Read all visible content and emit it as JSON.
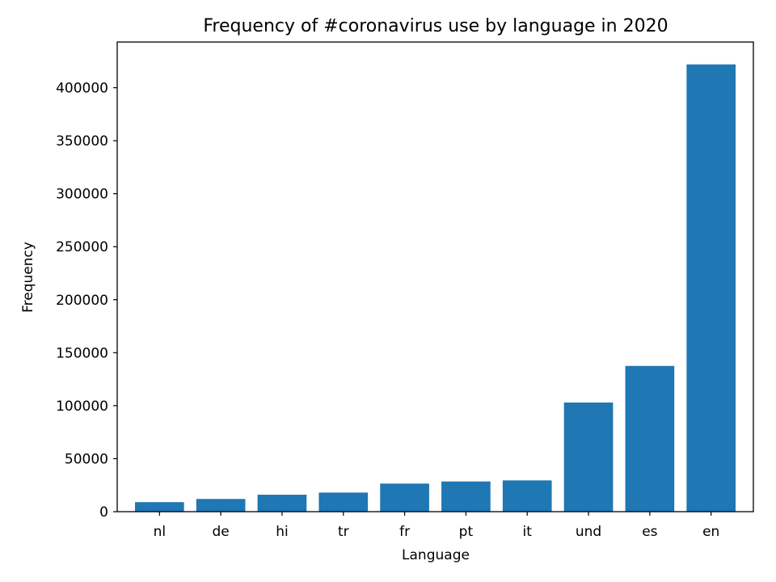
{
  "chart_data": {
    "type": "bar",
    "title": "Frequency of #coronavirus use by language in 2020",
    "xlabel": "Language",
    "ylabel": "Frequency",
    "categories": [
      "nl",
      "de",
      "hi",
      "tr",
      "fr",
      "pt",
      "it",
      "und",
      "es",
      "en"
    ],
    "values": [
      9000,
      12000,
      16000,
      18000,
      26500,
      28500,
      29500,
      103000,
      137500,
      422000
    ],
    "ylim": [
      0,
      443100
    ],
    "yticks": [
      0,
      50000,
      100000,
      150000,
      200000,
      250000,
      300000,
      350000,
      400000
    ],
    "bar_color": "#1f77b4",
    "grid": false,
    "legend": "none"
  }
}
